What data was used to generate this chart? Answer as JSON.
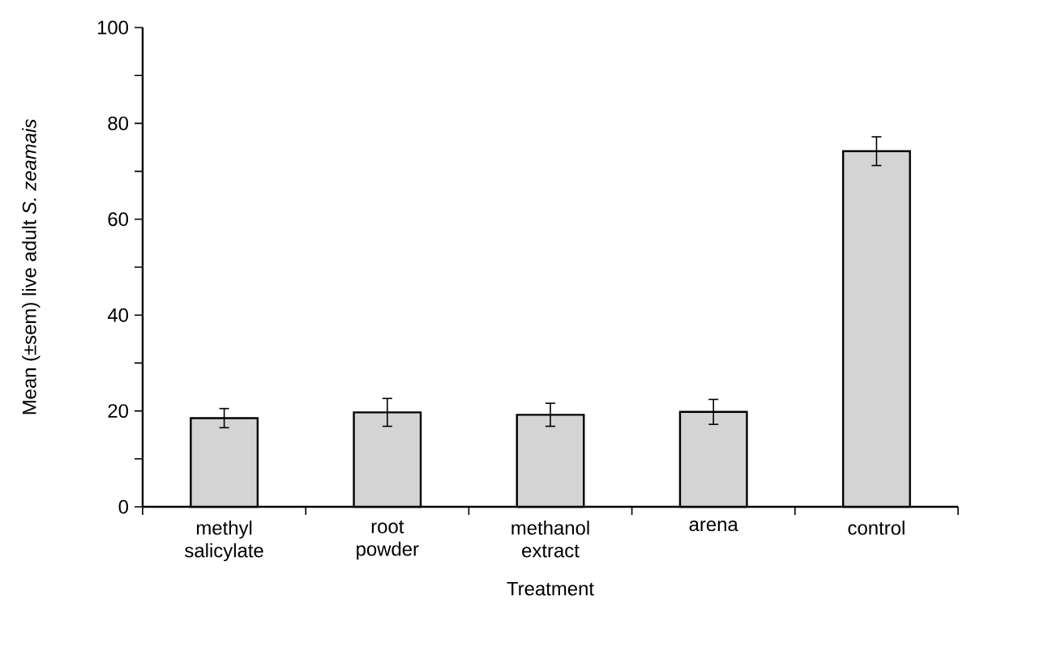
{
  "chart_data": {
    "type": "bar",
    "xlabel": "Treatment",
    "ylabel": "Mean (±sem) live adult *S. zeamais*",
    "categories": [
      "methyl salicylate",
      "root powder",
      "methanol extract",
      "arena",
      "control"
    ],
    "values": [
      18.5,
      19.7,
      19.2,
      19.8,
      74.2
    ],
    "errors": [
      2.0,
      2.9,
      2.4,
      2.6,
      3.0
    ],
    "color": "#d4d4d4",
    "ylim": [
      0,
      100
    ],
    "yticks": [
      0,
      {
        "value": 10,
        "label": null
      },
      20,
      {
        "value": 30,
        "label": null
      },
      40,
      {
        "value": 50,
        "label": null
      },
      60,
      {
        "value": 70,
        "label": null
      },
      80,
      {
        "value": 90,
        "label": null
      },
      100
    ],
    "grid": false
  }
}
